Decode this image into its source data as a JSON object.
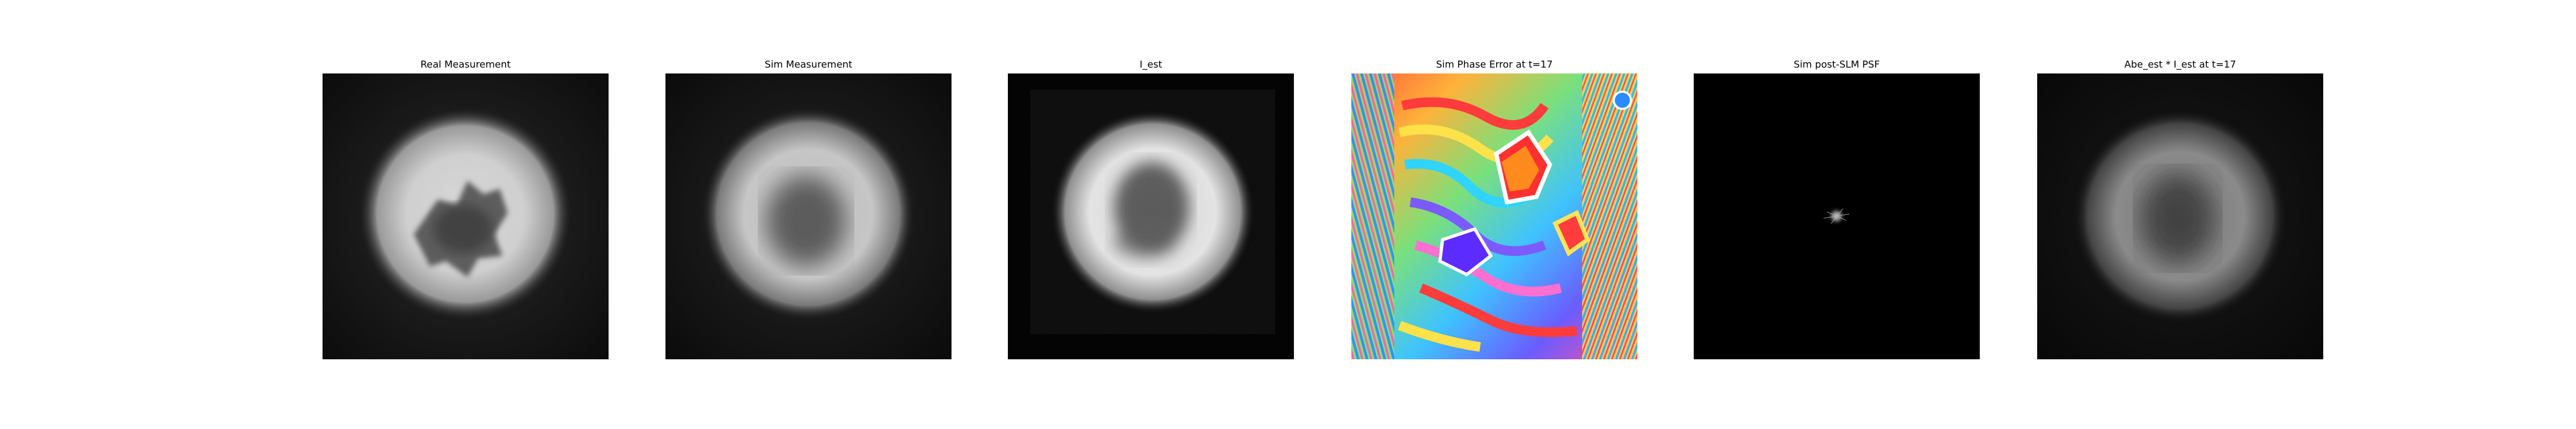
{
  "panels": [
    {
      "title": "Real Measurement",
      "colormap": "gray"
    },
    {
      "title": "Sim Measurement",
      "colormap": "gray"
    },
    {
      "title": "I_est",
      "colormap": "gray"
    },
    {
      "title": "Sim Phase Error at t=17",
      "colormap": "hsv-rainbow"
    },
    {
      "title": "Sim post-SLM PSF",
      "colormap": "gray"
    },
    {
      "title": "Abe_est * I_est at t=17",
      "colormap": "gray"
    }
  ],
  "colors": {
    "background": "#ffffff",
    "image_black": "#000000"
  }
}
